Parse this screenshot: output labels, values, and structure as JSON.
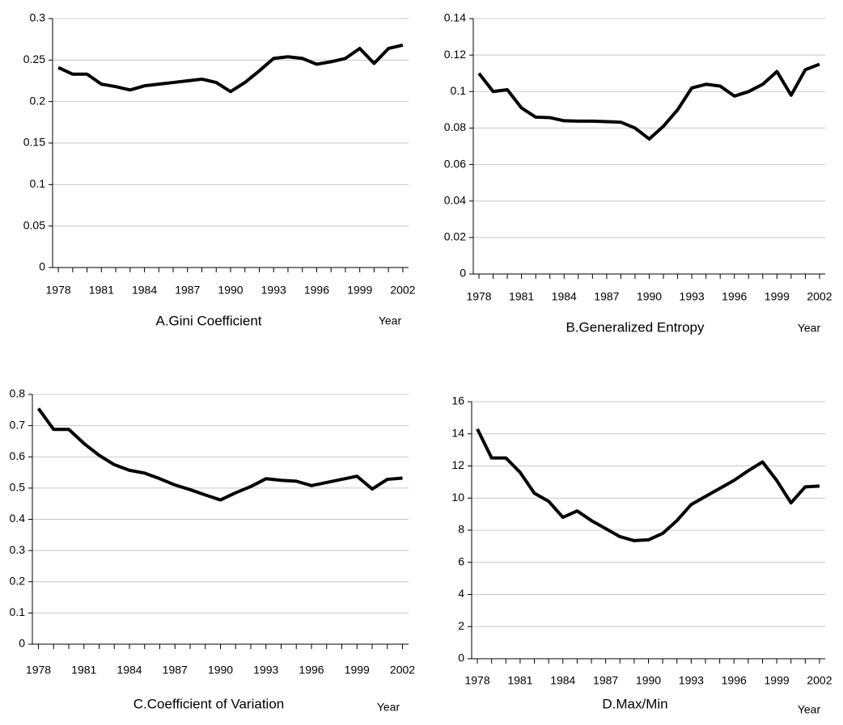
{
  "chart_data": [
    {
      "type": "line",
      "title": "A.Gini Coefficient",
      "xlabel": "Year",
      "x": [
        1978,
        1979,
        1980,
        1981,
        1982,
        1983,
        1984,
        1985,
        1986,
        1987,
        1988,
        1989,
        1990,
        1991,
        1992,
        1993,
        1994,
        1995,
        1996,
        1997,
        1998,
        1999,
        2000,
        2001,
        2002
      ],
      "xlim": [
        1977.6,
        2002.4
      ],
      "xticks": [
        1978,
        1981,
        1984,
        1987,
        1990,
        1993,
        1996,
        1999,
        2002
      ],
      "ylim": [
        0,
        0.3
      ],
      "yticks": [
        0,
        0.05,
        0.1,
        0.15,
        0.2,
        0.25,
        0.3
      ],
      "grid": true,
      "color": "#000000",
      "values": [
        0.241,
        0.233,
        0.233,
        0.221,
        0.218,
        0.214,
        0.219,
        0.221,
        0.223,
        0.225,
        0.227,
        0.223,
        0.212,
        0.223,
        0.237,
        0.252,
        0.254,
        0.252,
        0.245,
        0.248,
        0.252,
        0.264,
        0.246,
        0.264,
        0.268
      ]
    },
    {
      "type": "line",
      "title": "B.Generalized Entropy",
      "xlabel": "Year",
      "x": [
        1978,
        1979,
        1980,
        1981,
        1982,
        1983,
        1984,
        1985,
        1986,
        1987,
        1988,
        1989,
        1990,
        1991,
        1992,
        1993,
        1994,
        1995,
        1996,
        1997,
        1998,
        1999,
        2000,
        2001,
        2002
      ],
      "xlim": [
        1977.6,
        2002.4
      ],
      "xticks": [
        1978,
        1981,
        1984,
        1987,
        1990,
        1993,
        1996,
        1999,
        2002
      ],
      "ylim": [
        0,
        0.14
      ],
      "yticks": [
        0,
        0.02,
        0.04,
        0.06,
        0.08,
        0.1,
        0.12,
        0.14
      ],
      "grid": true,
      "color": "#000000",
      "values": [
        0.11,
        0.1,
        0.101,
        0.091,
        0.086,
        0.0857,
        0.084,
        0.0838,
        0.0838,
        0.0835,
        0.0832,
        0.08,
        0.074,
        0.081,
        0.09,
        0.102,
        0.104,
        0.103,
        0.0975,
        0.1,
        0.104,
        0.111,
        0.098,
        0.112,
        0.115
      ]
    },
    {
      "type": "line",
      "title": "C.Coefficient of Variation",
      "xlabel": "Year",
      "x": [
        1978,
        1979,
        1980,
        1981,
        1982,
        1983,
        1984,
        1985,
        1986,
        1987,
        1988,
        1989,
        1990,
        1991,
        1992,
        1993,
        1994,
        1995,
        1996,
        1997,
        1998,
        1999,
        2000,
        2001,
        2002
      ],
      "xlim": [
        1977.6,
        2002.4
      ],
      "xticks": [
        1978,
        1981,
        1984,
        1987,
        1990,
        1993,
        1996,
        1999,
        2002
      ],
      "ylim": [
        0,
        0.8
      ],
      "yticks": [
        0,
        0.1,
        0.2,
        0.3,
        0.4,
        0.5,
        0.6,
        0.7,
        0.8
      ],
      "grid": true,
      "color": "#000000",
      "values": [
        0.755,
        0.688,
        0.688,
        0.643,
        0.605,
        0.575,
        0.557,
        0.548,
        0.53,
        0.51,
        0.495,
        0.478,
        0.462,
        0.485,
        0.505,
        0.53,
        0.525,
        0.522,
        0.508,
        0.518,
        0.528,
        0.538,
        0.497,
        0.528,
        0.532
      ]
    },
    {
      "type": "line",
      "title": "D.Max/Min",
      "xlabel": "Year",
      "x": [
        1978,
        1979,
        1980,
        1981,
        1982,
        1983,
        1984,
        1985,
        1986,
        1987,
        1988,
        1989,
        1990,
        1991,
        1992,
        1993,
        1994,
        1995,
        1996,
        1997,
        1998,
        1999,
        2000,
        2001,
        2002
      ],
      "xlim": [
        1977.6,
        2002.4
      ],
      "xticks": [
        1978,
        1981,
        1984,
        1987,
        1990,
        1993,
        1996,
        1999,
        2002
      ],
      "ylim": [
        0,
        16
      ],
      "yticks": [
        0,
        2,
        4,
        6,
        8,
        10,
        12,
        14,
        16
      ],
      "grid": true,
      "color": "#000000",
      "values": [
        14.3,
        12.5,
        12.5,
        11.6,
        10.3,
        9.8,
        8.8,
        9.2,
        8.6,
        8.1,
        7.6,
        7.35,
        7.4,
        7.8,
        8.6,
        9.6,
        10.1,
        10.6,
        11.1,
        11.7,
        12.25,
        11.1,
        9.7,
        10.7,
        10.75
      ]
    }
  ]
}
